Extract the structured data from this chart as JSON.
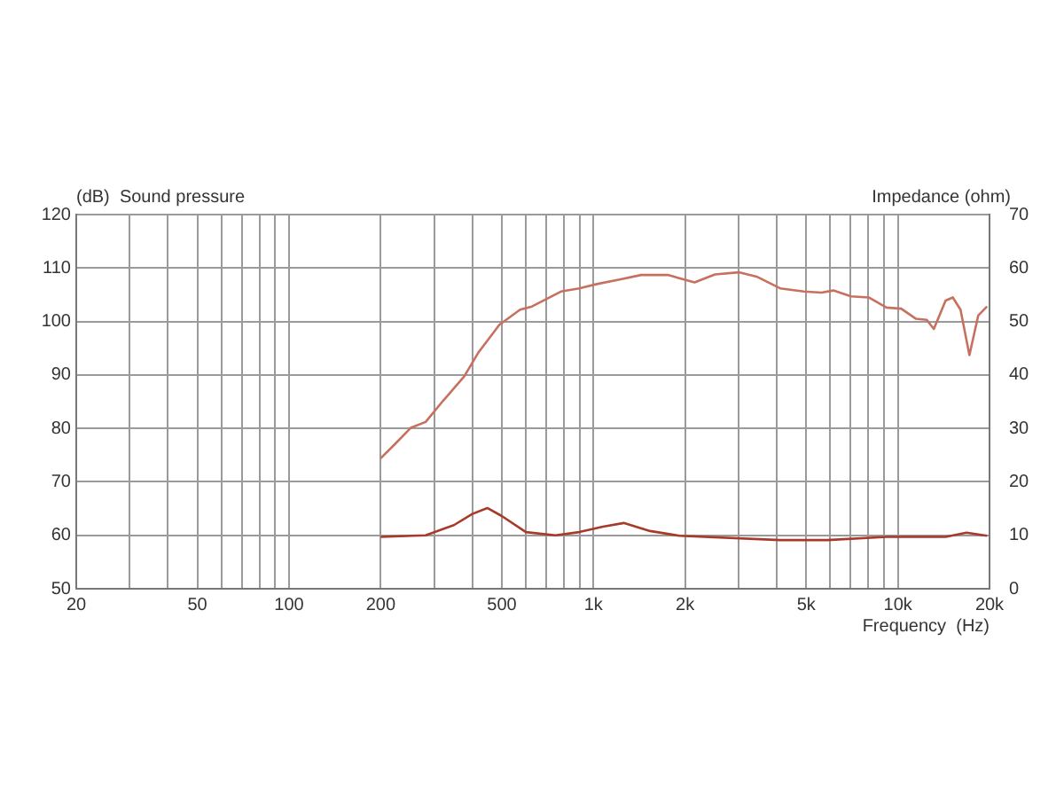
{
  "chart_data": {
    "type": "line",
    "ylabel": "(dB)  Sound pressure",
    "y2label": "Impedance (ohm)",
    "xlabel": "Frequency  (Hz)",
    "log": "x",
    "grid": true,
    "legend": false,
    "marker": "none",
    "line_style": "solid",
    "xlim": [
      20,
      20000
    ],
    "xticks": [
      20,
      {
        "value": 30,
        "label": null
      },
      {
        "value": 40,
        "label": null
      },
      50,
      {
        "value": 60,
        "label": null
      },
      {
        "value": 70,
        "label": null
      },
      {
        "value": 80,
        "label": null
      },
      {
        "value": 90,
        "label": null
      },
      100,
      200,
      {
        "value": 300,
        "label": null
      },
      {
        "value": 400,
        "label": null
      },
      500,
      {
        "value": 600,
        "label": null
      },
      {
        "value": 700,
        "label": null
      },
      {
        "value": 800,
        "label": null
      },
      {
        "value": 900,
        "label": null
      },
      {
        "value": 1000,
        "label": "1k"
      },
      {
        "value": 2000,
        "label": "2k"
      },
      {
        "value": 3000,
        "label": null
      },
      {
        "value": 4000,
        "label": null
      },
      {
        "value": 5000,
        "label": "5k"
      },
      {
        "value": 6000,
        "label": null
      },
      {
        "value": 7000,
        "label": null
      },
      {
        "value": 8000,
        "label": null
      },
      {
        "value": 9000,
        "label": null
      },
      {
        "value": 10000,
        "label": "10k"
      },
      {
        "value": 20000,
        "label": "20k"
      }
    ],
    "ylim": [
      50,
      120
    ],
    "yticks": [
      50,
      60,
      70,
      80,
      90,
      100,
      110,
      120
    ],
    "y2lim": [
      0,
      70
    ],
    "y2ticks": [
      0,
      10,
      20,
      30,
      40,
      50,
      60,
      70
    ],
    "series": [
      {
        "color": "#c8705f",
        "x": [
          200,
          224,
          251,
          281,
          321,
          376,
          420,
          491,
          574,
          628,
          718,
          782,
          898,
          1026,
          1228,
          1435,
          1755,
          2148,
          2508,
          3000,
          3433,
          4103,
          4907,
          5612,
          6138,
          7015,
          8018,
          9175,
          10256,
          11473,
          12439,
          13125,
          14349,
          15150,
          16060,
          17180,
          18360,
          19630
        ],
        "values": [
          74.4,
          77.2,
          80.1,
          81.2,
          85.2,
          89.7,
          94.3,
          99.4,
          102.2,
          102.8,
          104.5,
          105.6,
          106.2,
          107,
          107.9,
          108.7,
          108.7,
          107.3,
          108.8,
          109.2,
          108.4,
          106.2,
          105.6,
          105.4,
          105.8,
          104.7,
          104.5,
          102.6,
          102.4,
          100.5,
          100.3,
          98.6,
          103.9,
          104.5,
          102.2,
          93.7,
          101.1,
          102.8
        ]
      },
      {
        "color": "#a83a2a",
        "axis": "y2",
        "x": [
          200,
          281,
          348,
          400,
          448,
          500,
          600,
          750,
          898,
          1074,
          1257,
          1535,
          1918,
          4103,
          5864,
          9175,
          14349,
          16800,
          19630
        ],
        "values": [
          9.7,
          10,
          11.9,
          14,
          15.1,
          13.6,
          10.6,
          10,
          10.6,
          11.6,
          12.3,
          10.8,
          9.9,
          9.1,
          9.1,
          9.7,
          9.7,
          10.5,
          9.9
        ]
      }
    ]
  }
}
